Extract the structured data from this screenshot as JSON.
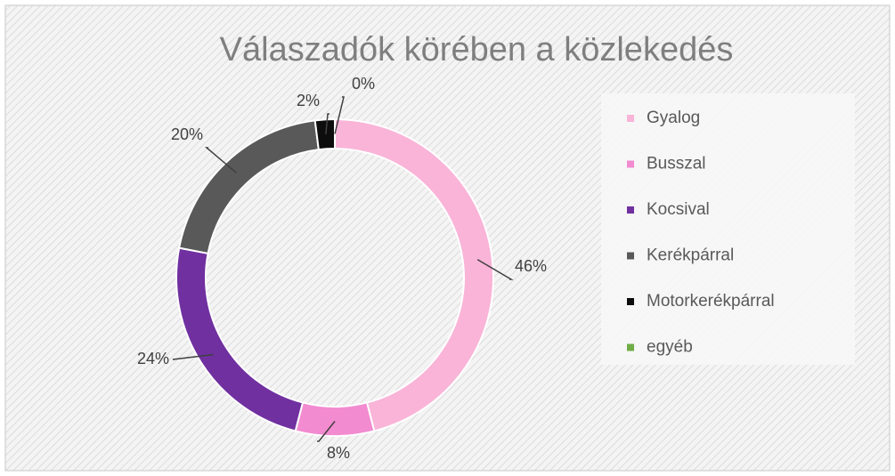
{
  "chart_data": {
    "type": "donut",
    "title": "Válaszadók körében a közlekedés",
    "categories": [
      "Gyalog",
      "Busszal",
      "Kocsival",
      "Kerékpárral",
      "Motorkerékpárral",
      "egyéb"
    ],
    "values": [
      46,
      8,
      24,
      20,
      2,
      0
    ],
    "value_labels": [
      "46%",
      "8%",
      "24%",
      "20%",
      "2%",
      "0%"
    ],
    "colors": [
      "#f9b4d8",
      "#f28bd0",
      "#7030a0",
      "#595959",
      "#0d0d0d",
      "#70ad47"
    ],
    "legend": "right"
  }
}
